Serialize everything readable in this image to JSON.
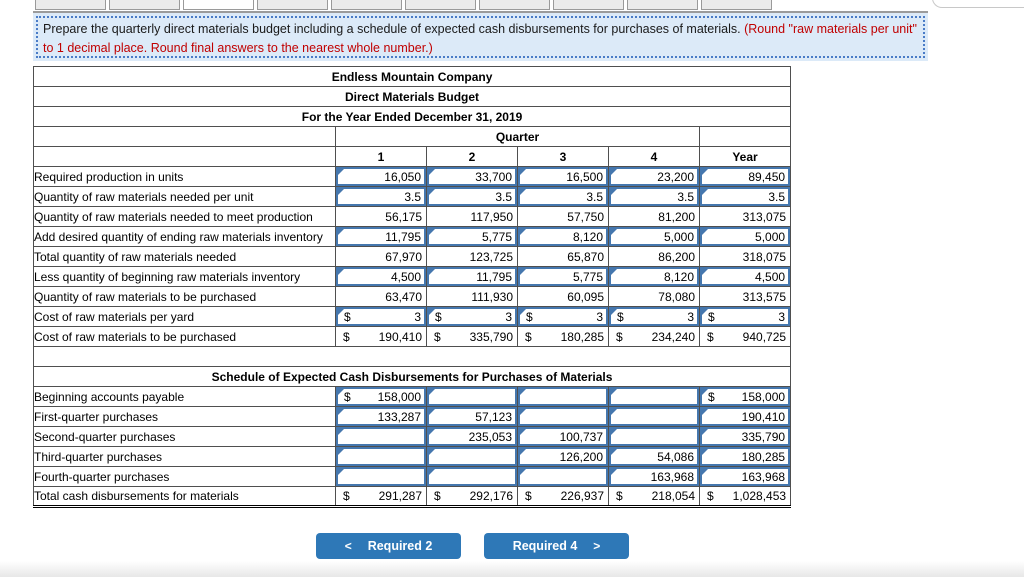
{
  "tabs": {
    "count": 10,
    "active_index": 2
  },
  "instruction": {
    "text_black": "Prepare the quarterly direct materials budget including a schedule of expected cash disbursements for purchases of materials. ",
    "text_red": "(Round \"raw materials per unit\" to 1 decimal place. Round final answers to the nearest whole number.)"
  },
  "budget_table": {
    "title_lines": [
      "Endless Mountain Company",
      "Direct Materials Budget",
      "For the Year Ended December 31, 2019"
    ],
    "quarter_header": "Quarter",
    "col_headers": [
      "1",
      "2",
      "3",
      "4",
      "Year"
    ],
    "rows": [
      {
        "label": "Required production in units",
        "cells": [
          {
            "type": "input",
            "dollar": false,
            "value": "16,050"
          },
          {
            "type": "input",
            "dollar": false,
            "value": "33,700"
          },
          {
            "type": "input",
            "dollar": false,
            "value": "16,500"
          },
          {
            "type": "input",
            "dollar": false,
            "value": "23,200"
          },
          {
            "type": "input",
            "dollar": false,
            "value": "89,450"
          }
        ]
      },
      {
        "label": "Quantity of raw materials needed per unit",
        "cells": [
          {
            "type": "input",
            "dollar": false,
            "value": "3.5"
          },
          {
            "type": "input",
            "dollar": false,
            "value": "3.5"
          },
          {
            "type": "input",
            "dollar": false,
            "value": "3.5"
          },
          {
            "type": "input",
            "dollar": false,
            "value": "3.5"
          },
          {
            "type": "input",
            "dollar": false,
            "value": "3.5"
          }
        ]
      },
      {
        "label": "Quantity of raw materials needed to meet production",
        "cells": [
          {
            "type": "calc",
            "dollar": false,
            "value": "56,175"
          },
          {
            "type": "calc",
            "dollar": false,
            "value": "117,950"
          },
          {
            "type": "calc",
            "dollar": false,
            "value": "57,750"
          },
          {
            "type": "calc",
            "dollar": false,
            "value": "81,200"
          },
          {
            "type": "calc",
            "dollar": false,
            "value": "313,075"
          }
        ]
      },
      {
        "label": "Add desired quantity of ending raw materials inventory",
        "cells": [
          {
            "type": "input",
            "dollar": false,
            "value": "11,795"
          },
          {
            "type": "input",
            "dollar": false,
            "value": "5,775"
          },
          {
            "type": "input",
            "dollar": false,
            "value": "8,120"
          },
          {
            "type": "input",
            "dollar": false,
            "value": "5,000"
          },
          {
            "type": "input",
            "dollar": false,
            "value": "5,000"
          }
        ]
      },
      {
        "label": "Total quantity of raw materials needed",
        "cells": [
          {
            "type": "calc",
            "dollar": false,
            "value": "67,970"
          },
          {
            "type": "calc",
            "dollar": false,
            "value": "123,725"
          },
          {
            "type": "calc",
            "dollar": false,
            "value": "65,870"
          },
          {
            "type": "calc",
            "dollar": false,
            "value": "86,200"
          },
          {
            "type": "calc",
            "dollar": false,
            "value": "318,075"
          }
        ]
      },
      {
        "label": "Less quantity of beginning raw materials inventory",
        "cells": [
          {
            "type": "input",
            "dollar": false,
            "value": "4,500"
          },
          {
            "type": "input",
            "dollar": false,
            "value": "11,795"
          },
          {
            "type": "input",
            "dollar": false,
            "value": "5,775"
          },
          {
            "type": "input",
            "dollar": false,
            "value": "8,120"
          },
          {
            "type": "input",
            "dollar": false,
            "value": "4,500"
          }
        ]
      },
      {
        "label": "Quantity of raw materials to be purchased",
        "cells": [
          {
            "type": "calc",
            "dollar": false,
            "value": "63,470"
          },
          {
            "type": "calc",
            "dollar": false,
            "value": "111,930"
          },
          {
            "type": "calc",
            "dollar": false,
            "value": "60,095"
          },
          {
            "type": "calc",
            "dollar": false,
            "value": "78,080"
          },
          {
            "type": "calc",
            "dollar": false,
            "value": "313,575"
          }
        ]
      },
      {
        "label": "Cost of raw materials per yard",
        "cells": [
          {
            "type": "input",
            "dollar": true,
            "value": "3"
          },
          {
            "type": "input",
            "dollar": true,
            "value": "3"
          },
          {
            "type": "input",
            "dollar": true,
            "value": "3"
          },
          {
            "type": "input",
            "dollar": true,
            "value": "3"
          },
          {
            "type": "input",
            "dollar": true,
            "value": "3"
          }
        ]
      },
      {
        "label": "Cost of raw materials to be purchased",
        "cells": [
          {
            "type": "calc",
            "dollar": true,
            "value": "190,410"
          },
          {
            "type": "calc",
            "dollar": true,
            "value": "335,790"
          },
          {
            "type": "calc",
            "dollar": true,
            "value": "180,285"
          },
          {
            "type": "calc",
            "dollar": true,
            "value": "234,240"
          },
          {
            "type": "calc",
            "dollar": true,
            "value": "940,725"
          }
        ]
      }
    ]
  },
  "schedule_table": {
    "header": "Schedule of Expected Cash Disbursements for Purchases of Materials",
    "rows": [
      {
        "label": "Beginning accounts payable",
        "cells": [
          {
            "type": "input",
            "dollar": true,
            "value": "158,000"
          },
          {
            "type": "input",
            "dollar": false,
            "value": ""
          },
          {
            "type": "input",
            "dollar": false,
            "value": ""
          },
          {
            "type": "input",
            "dollar": false,
            "value": ""
          },
          {
            "type": "input",
            "dollar": true,
            "value": "158,000"
          }
        ]
      },
      {
        "label": "First-quarter purchases",
        "cells": [
          {
            "type": "input",
            "dollar": false,
            "value": "133,287"
          },
          {
            "type": "input",
            "dollar": false,
            "value": "57,123"
          },
          {
            "type": "input",
            "dollar": false,
            "value": ""
          },
          {
            "type": "input",
            "dollar": false,
            "value": ""
          },
          {
            "type": "input",
            "dollar": false,
            "value": "190,410"
          }
        ]
      },
      {
        "label": "Second-quarter purchases",
        "cells": [
          {
            "type": "input",
            "dollar": false,
            "value": ""
          },
          {
            "type": "input",
            "dollar": false,
            "value": "235,053"
          },
          {
            "type": "input",
            "dollar": false,
            "value": "100,737"
          },
          {
            "type": "input",
            "dollar": false,
            "value": ""
          },
          {
            "type": "input",
            "dollar": false,
            "value": "335,790"
          }
        ]
      },
      {
        "label": "Third-quarter purchases",
        "cells": [
          {
            "type": "input",
            "dollar": false,
            "value": ""
          },
          {
            "type": "input",
            "dollar": false,
            "value": ""
          },
          {
            "type": "input",
            "dollar": false,
            "value": "126,200"
          },
          {
            "type": "input",
            "dollar": false,
            "value": "54,086"
          },
          {
            "type": "input",
            "dollar": false,
            "value": "180,285"
          }
        ]
      },
      {
        "label": "Fourth-quarter purchases",
        "cells": [
          {
            "type": "input",
            "dollar": false,
            "value": ""
          },
          {
            "type": "input",
            "dollar": false,
            "value": ""
          },
          {
            "type": "input",
            "dollar": false,
            "value": ""
          },
          {
            "type": "input",
            "dollar": false,
            "value": "163,968"
          },
          {
            "type": "input",
            "dollar": false,
            "value": "163,968"
          }
        ]
      },
      {
        "label": "Total cash disbursements for materials",
        "total": true,
        "cells": [
          {
            "type": "calc",
            "dollar": true,
            "value": "291,287"
          },
          {
            "type": "calc",
            "dollar": true,
            "value": "292,176"
          },
          {
            "type": "calc",
            "dollar": true,
            "value": "226,937"
          },
          {
            "type": "calc",
            "dollar": true,
            "value": "218,054"
          },
          {
            "type": "calc",
            "dollar": true,
            "value": "1,028,453"
          }
        ]
      }
    ]
  },
  "buttons": {
    "prev": {
      "chevron": "<",
      "label": "Required 2"
    },
    "next": {
      "label": "Required 4",
      "chevron": ">"
    }
  },
  "colors": {
    "header_blue": "#7bade0",
    "input_border_blue": "#4577ae",
    "button_blue": "#2e78b7",
    "note_red": "#c00000"
  }
}
